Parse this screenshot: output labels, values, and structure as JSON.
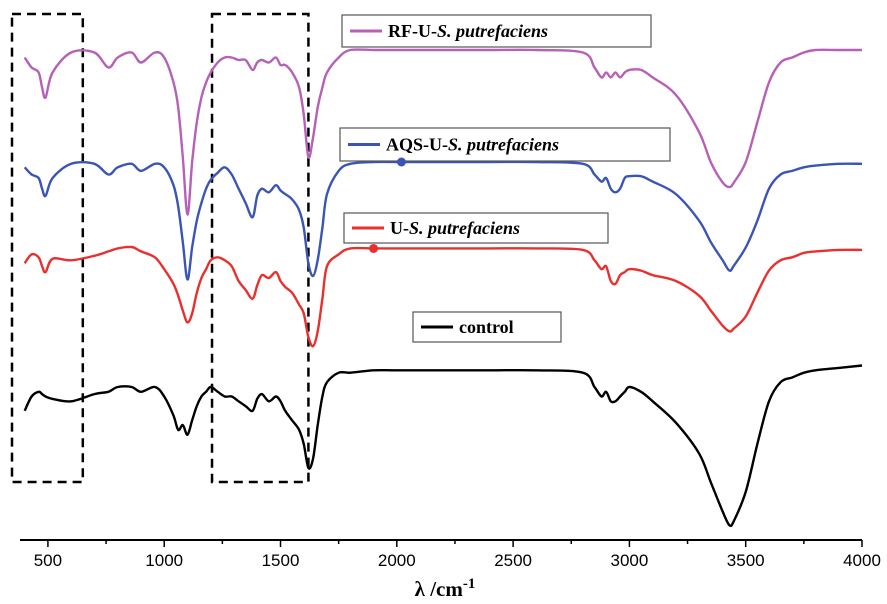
{
  "chart_data": {
    "type": "line",
    "xlabel": "λ /cm",
    "xlabel_sup": "-1",
    "xlim": [
      380,
      4000
    ],
    "xticks": [
      500,
      1000,
      1500,
      2000,
      2500,
      3000,
      3500,
      4000
    ],
    "y_axis": "none (vertically offset spectra, arbitrary units)",
    "grid": false,
    "highlight_boxes": [
      {
        "x_range": [
          380,
          650
        ],
        "style": "dashed"
      },
      {
        "x_range": [
          1240,
          1620
        ],
        "style": "dashed"
      }
    ],
    "series": [
      {
        "name": "RF-U-S. putrefaciens",
        "name_main": "RF-U-",
        "name_italic": "S. putrefaciens",
        "color": "#b660b8",
        "x": [
          400,
          430,
          460,
          475,
          490,
          520,
          600,
          700,
          760,
          800,
          860,
          900,
          960,
          1000,
          1040,
          1060,
          1080,
          1100,
          1120,
          1140,
          1160,
          1180,
          1200,
          1230,
          1260,
          1290,
          1320,
          1350,
          1380,
          1400,
          1420,
          1450,
          1480,
          1500,
          1520,
          1550,
          1580,
          1600,
          1620,
          1640,
          1660,
          1680,
          1700,
          1750,
          1800,
          1900,
          2000,
          2200,
          2400,
          2600,
          2800,
          2850,
          2880,
          2900,
          2920,
          2940,
          2960,
          2980,
          3000,
          3050,
          3100,
          3200,
          3300,
          3350,
          3400,
          3430,
          3450,
          3500,
          3550,
          3600,
          3650,
          3700,
          3750,
          3800,
          3900,
          4000
        ],
        "y": [
          70,
          66,
          64,
          58,
          54,
          64,
          72,
          72,
          66,
          70,
          72,
          68,
          72,
          70,
          60,
          50,
          30,
          7,
          28,
          44,
          54,
          60,
          64,
          68,
          70,
          70,
          69,
          69,
          65,
          68,
          69,
          68,
          70,
          67,
          67,
          64,
          58,
          47,
          30,
          38,
          50,
          58,
          64,
          70,
          73,
          73,
          73,
          73,
          73,
          73,
          72,
          66,
          62,
          64,
          62,
          64,
          62,
          64,
          65,
          65,
          62,
          55,
          40,
          28,
          20,
          18,
          20,
          28,
          44,
          60,
          68,
          70,
          72,
          73,
          73,
          73
        ]
      },
      {
        "name": "AQS-U-S. putrefaciens",
        "name_main": "AQS-U-",
        "name_italic": "S. putrefaciens",
        "color": "#3b55b4",
        "x": [
          400,
          430,
          460,
          475,
          490,
          520,
          600,
          700,
          760,
          800,
          860,
          900,
          960,
          1000,
          1040,
          1060,
          1080,
          1100,
          1120,
          1140,
          1160,
          1180,
          1200,
          1230,
          1260,
          1290,
          1320,
          1350,
          1380,
          1400,
          1420,
          1450,
          1480,
          1500,
          1520,
          1550,
          1580,
          1600,
          1620,
          1640,
          1660,
          1680,
          1700,
          1750,
          1800,
          1900,
          2000,
          2200,
          2400,
          2600,
          2800,
          2850,
          2880,
          2900,
          2920,
          2940,
          2960,
          2980,
          3000,
          3050,
          3100,
          3200,
          3300,
          3350,
          3400,
          3430,
          3450,
          3500,
          3550,
          3600,
          3650,
          3700,
          3750,
          3800,
          3900,
          4000
        ],
        "y": [
          70,
          66,
          64,
          58,
          54,
          64,
          72,
          72,
          66,
          70,
          72,
          68,
          72,
          70,
          60,
          48,
          28,
          7,
          25,
          40,
          50,
          58,
          63,
          67,
          70,
          66,
          58,
          50,
          42,
          54,
          58,
          56,
          60,
          57,
          55,
          52,
          46,
          36,
          16,
          9,
          18,
          36,
          55,
          68,
          72,
          73,
          73,
          73,
          73,
          73,
          72,
          66,
          62,
          64,
          58,
          56,
          58,
          64,
          65,
          65,
          62,
          55,
          40,
          28,
          18,
          12,
          15,
          25,
          40,
          58,
          66,
          68,
          70,
          71,
          72,
          72
        ]
      },
      {
        "name": "U-S. putrefaciens",
        "name_main": "U-",
        "name_italic": "S. putrefaciens",
        "color": "#e8302e",
        "x": [
          400,
          430,
          460,
          475,
          490,
          520,
          600,
          700,
          760,
          800,
          860,
          900,
          960,
          1000,
          1040,
          1060,
          1080,
          1100,
          1120,
          1140,
          1160,
          1180,
          1200,
          1230,
          1260,
          1290,
          1320,
          1350,
          1380,
          1400,
          1420,
          1450,
          1480,
          1500,
          1520,
          1550,
          1580,
          1600,
          1620,
          1640,
          1660,
          1680,
          1700,
          1750,
          1800,
          1900,
          2000,
          2200,
          2400,
          2600,
          2800,
          2850,
          2880,
          2900,
          2920,
          2940,
          2960,
          2980,
          3000,
          3050,
          3100,
          3200,
          3300,
          3350,
          3400,
          3430,
          3450,
          3500,
          3550,
          3600,
          3650,
          3700,
          3750,
          3800,
          3900,
          4000
        ],
        "y": [
          60,
          66,
          64,
          58,
          54,
          63,
          62,
          65,
          68,
          70,
          71,
          68,
          64,
          56,
          46,
          38,
          28,
          20,
          26,
          40,
          50,
          56,
          62,
          64,
          62,
          58,
          48,
          42,
          36,
          45,
          52,
          50,
          54,
          48,
          44,
          40,
          32,
          26,
          10,
          4,
          14,
          36,
          58,
          66,
          70,
          70,
          70,
          70,
          70,
          70,
          69,
          62,
          56,
          58,
          48,
          46,
          52,
          54,
          56,
          55,
          52,
          48,
          38,
          28,
          18,
          14,
          16,
          24,
          40,
          55,
          62,
          64,
          67,
          68,
          69,
          69
        ]
      },
      {
        "name": "control",
        "name_main": "control",
        "name_italic": "",
        "color": "#000000",
        "x": [
          400,
          430,
          460,
          475,
          490,
          520,
          600,
          700,
          760,
          800,
          860,
          900,
          960,
          1000,
          1040,
          1060,
          1080,
          1100,
          1120,
          1140,
          1160,
          1180,
          1200,
          1230,
          1260,
          1290,
          1320,
          1350,
          1380,
          1400,
          1420,
          1450,
          1480,
          1500,
          1520,
          1550,
          1580,
          1600,
          1620,
          1640,
          1660,
          1680,
          1700,
          1750,
          1800,
          1900,
          2000,
          2200,
          2400,
          2600,
          2800,
          2850,
          2880,
          2900,
          2920,
          2940,
          2960,
          2980,
          3000,
          3050,
          3100,
          3200,
          3300,
          3350,
          3400,
          3430,
          3450,
          3500,
          3550,
          3600,
          3650,
          3700,
          3750,
          3800,
          3900,
          4000
        ],
        "y": [
          50,
          56,
          58,
          57,
          56,
          55,
          54,
          57,
          58,
          60,
          60,
          58,
          60,
          56,
          48,
          42,
          44,
          40,
          46,
          52,
          56,
          58,
          60,
          58,
          56,
          56,
          54,
          52,
          50,
          55,
          57,
          54,
          56,
          54,
          50,
          46,
          42,
          36,
          26,
          30,
          44,
          56,
          62,
          66,
          66,
          67,
          67,
          67,
          67,
          67,
          66,
          60,
          56,
          58,
          54,
          54,
          56,
          58,
          60,
          58,
          54,
          45,
          32,
          20,
          8,
          2,
          4,
          16,
          36,
          54,
          62,
          64,
          66,
          67,
          68,
          69
        ]
      }
    ]
  }
}
